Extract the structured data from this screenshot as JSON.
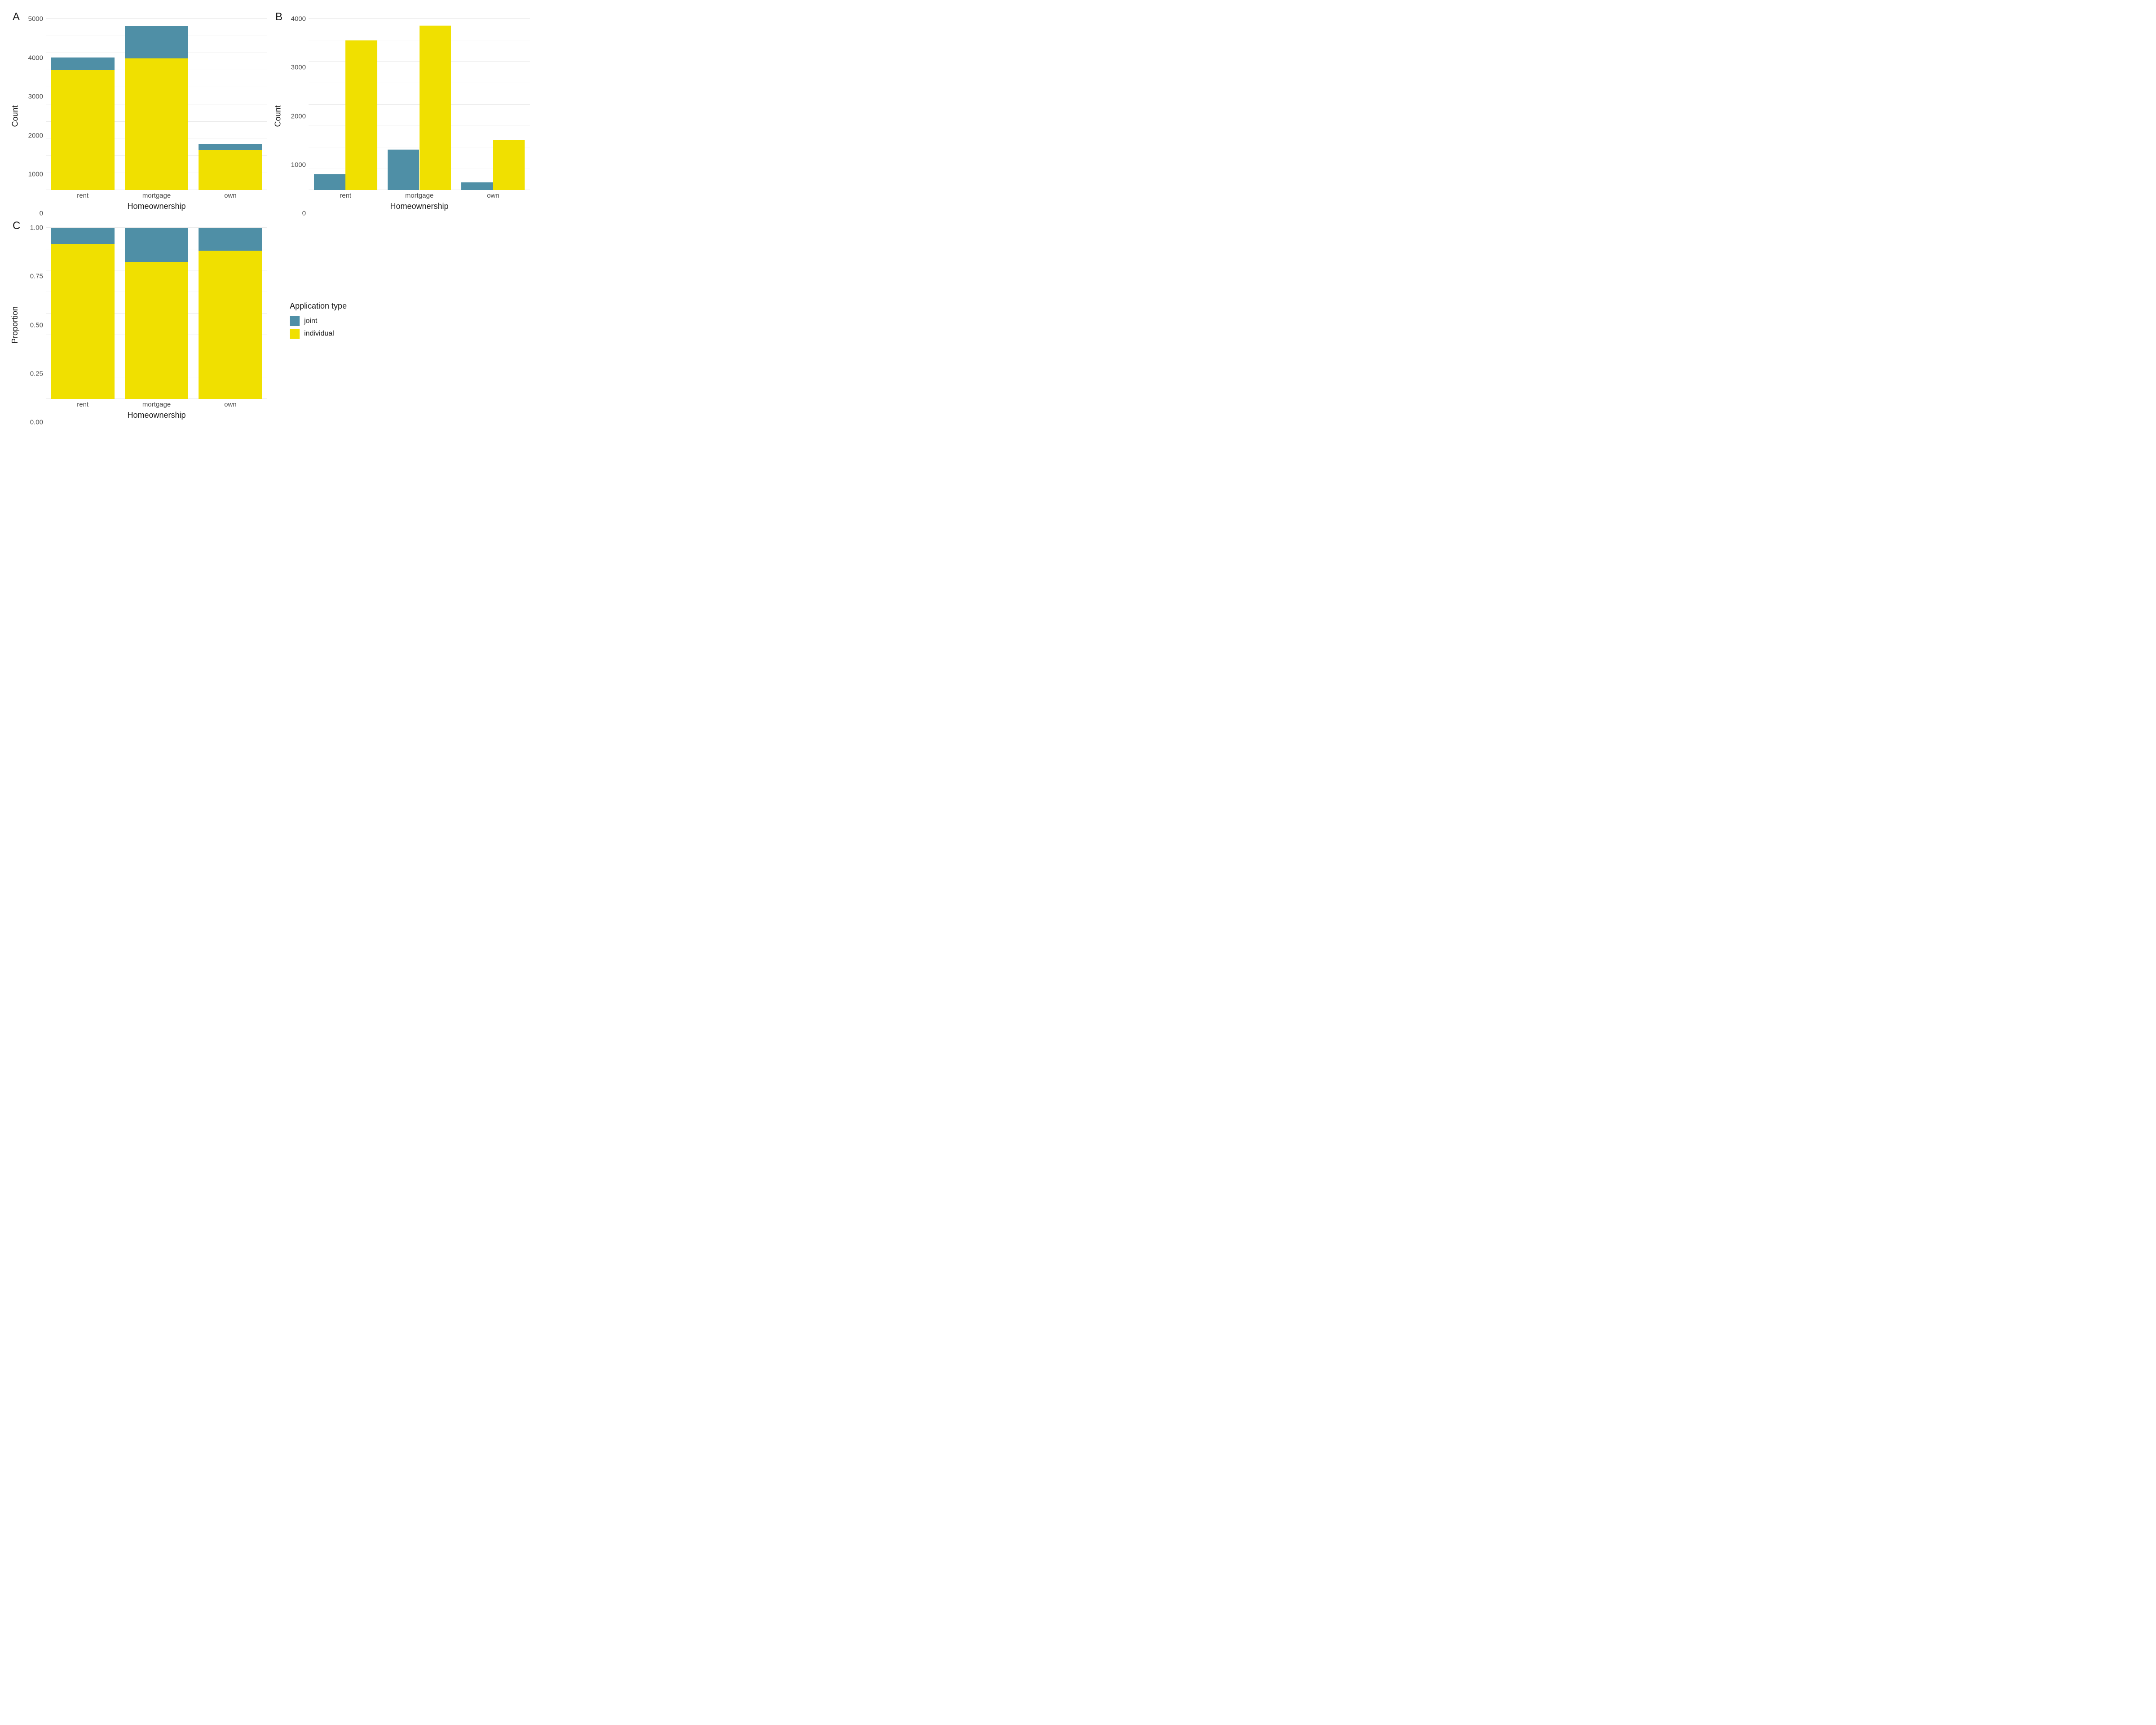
{
  "palette": {
    "joint": "#4f8fa6",
    "individual": "#f0e000",
    "panel_bg": "#ffffff",
    "grid_major": "#ebebeb",
    "grid_minor": "#f3f3f3",
    "axis_text": "#4d4d4d",
    "text": "#1a1a1a"
  },
  "legend": {
    "title": "Application type",
    "items": [
      {
        "key": "joint",
        "label": "joint"
      },
      {
        "key": "individual",
        "label": "individual"
      }
    ]
  },
  "panels": {
    "A": {
      "tag": "A",
      "type": "stacked-bar",
      "xlabel": "Homeownership",
      "ylabel": "Count",
      "ylim": [
        0,
        5000
      ],
      "yticks": [
        0,
        1000,
        2000,
        3000,
        4000,
        5000
      ],
      "yticks_minor": [
        500,
        1500,
        2500,
        3500,
        4500
      ],
      "categories": [
        "rent",
        "mortgage",
        "own"
      ],
      "series_order": [
        "individual",
        "joint"
      ],
      "data": {
        "rent": {
          "individual": 3500,
          "joint": 370
        },
        "mortgage": {
          "individual": 3840,
          "joint": 950
        },
        "own": {
          "individual": 1170,
          "joint": 180
        }
      },
      "bar_width": 0.86
    },
    "B": {
      "tag": "B",
      "type": "grouped-bar",
      "xlabel": "Homeownership",
      "ylabel": "Count",
      "ylim": [
        0,
        4000
      ],
      "yticks": [
        0,
        1000,
        2000,
        3000,
        4000
      ],
      "yticks_minor": [
        500,
        1500,
        2500,
        3500
      ],
      "categories": [
        "rent",
        "mortgage",
        "own"
      ],
      "series_order": [
        "joint",
        "individual"
      ],
      "data": {
        "rent": {
          "joint": 370,
          "individual": 3500
        },
        "mortgage": {
          "joint": 950,
          "individual": 3840
        },
        "own": {
          "joint": 180,
          "individual": 1170
        }
      },
      "bar_width": 0.43,
      "group_gap": 0.0
    },
    "C": {
      "tag": "C",
      "type": "stacked-bar",
      "xlabel": "Homeownership",
      "ylabel": "Proportion",
      "ylim": [
        0,
        1.0
      ],
      "yticks": [
        0.0,
        0.25,
        0.5,
        0.75,
        1.0
      ],
      "yticks_minor": [
        0.125,
        0.375,
        0.625,
        0.875
      ],
      "ytick_format": "fixed2",
      "categories": [
        "rent",
        "mortgage",
        "own"
      ],
      "series_order": [
        "individual",
        "joint"
      ],
      "data": {
        "rent": {
          "individual": 0.905,
          "joint": 0.095
        },
        "mortgage": {
          "individual": 0.8,
          "joint": 0.2
        },
        "own": {
          "individual": 0.865,
          "joint": 0.135
        }
      },
      "bar_width": 0.86
    }
  }
}
